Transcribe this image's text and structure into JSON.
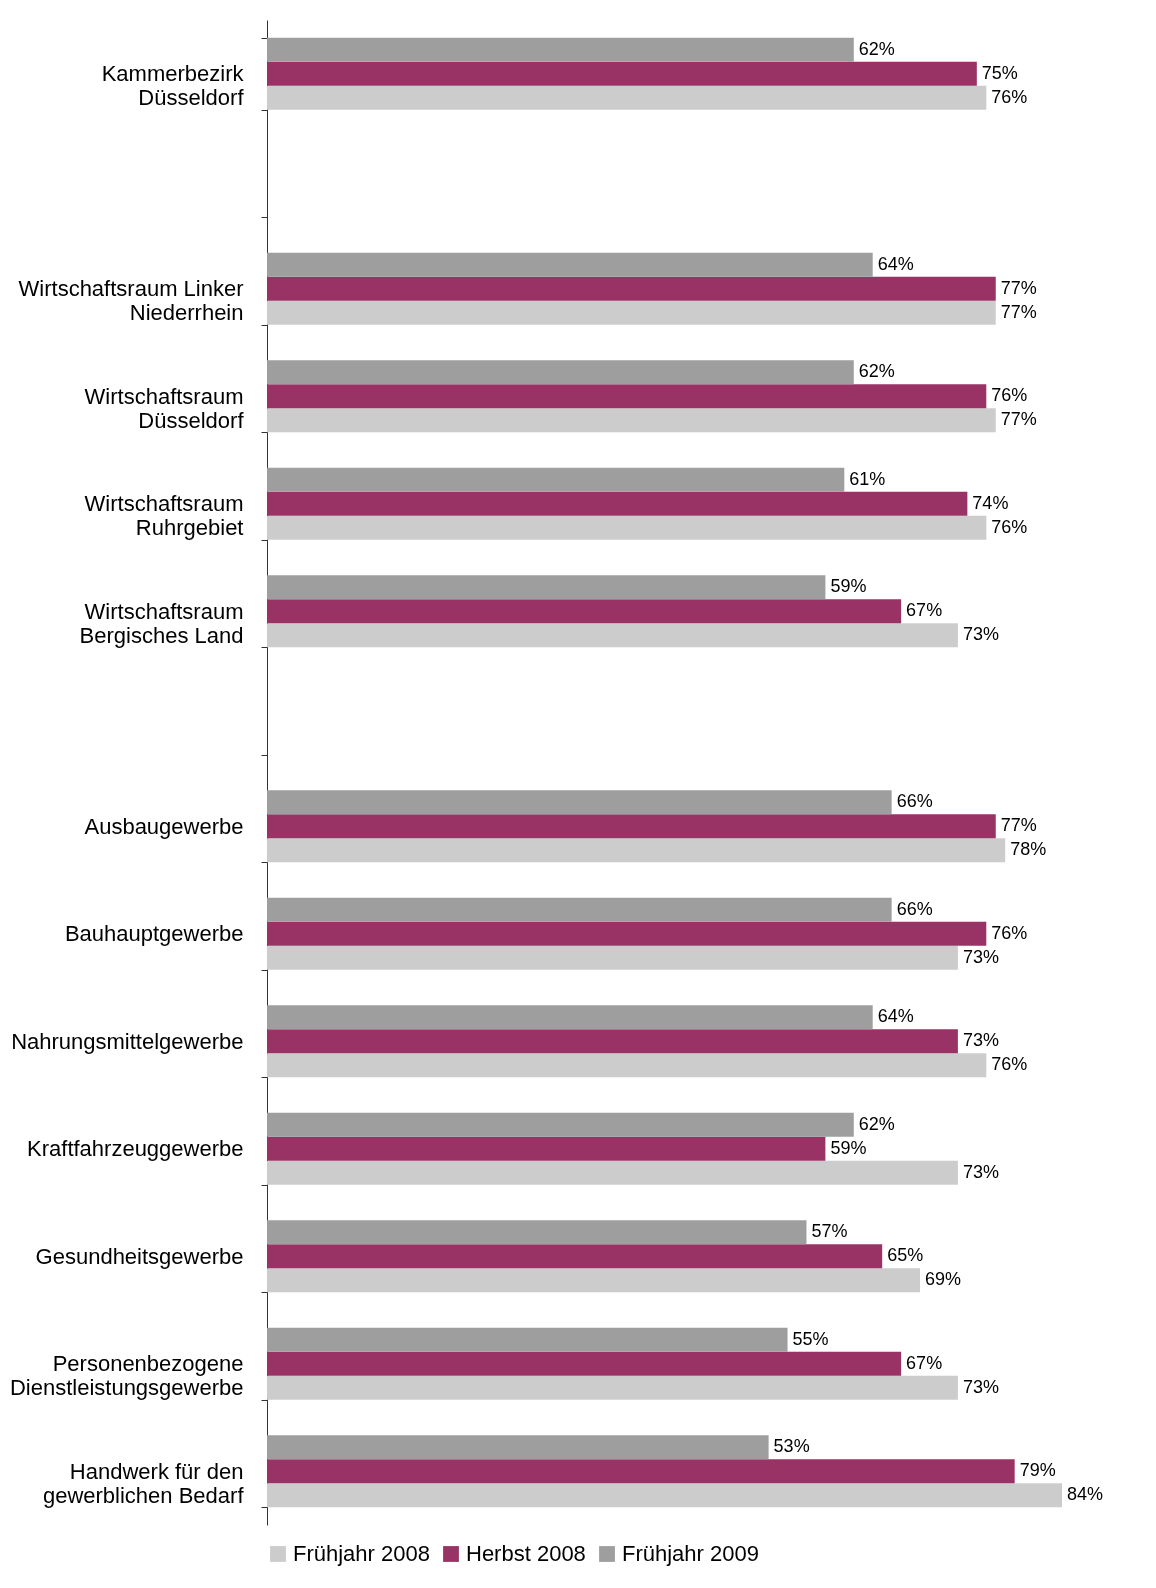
{
  "chart_data": {
    "type": "bar",
    "orientation": "horizontal",
    "categories": [
      "Kammerbezirk Düsseldorf",
      null,
      "Wirtschaftsraum Linker Niederrhein",
      "Wirtschaftsraum Düsseldorf",
      "Wirtschaftsraum Ruhrgebiet",
      "Wirtschaftsraum Bergisches Land",
      null,
      "Ausbaugewerbe",
      "Bauhauptgewerbe",
      "Nahrungsmittelgewerbe",
      "Kraftfahrzeuggewerbe",
      "Gesundheitsgewerbe",
      "Personenbezogene Dienstleistungsgewerbe",
      "Handwerk für den gewerblichen Bedarf"
    ],
    "series": [
      {
        "name": "Frühjahr 2008",
        "color": "#cccccc",
        "values": [
          76,
          null,
          77,
          77,
          76,
          73,
          null,
          78,
          73,
          76,
          73,
          69,
          73,
          84
        ],
        "value_labels": [
          "76%",
          null,
          "77%",
          "77%",
          "76%",
          "73%",
          null,
          "78%",
          "73%",
          "76%",
          "73%",
          "69%",
          "73%",
          "84%"
        ]
      },
      {
        "name": "Herbst 2008",
        "color": "#993366",
        "values": [
          75,
          null,
          77,
          76,
          74,
          67,
          null,
          77,
          76,
          73,
          59,
          65,
          67,
          79
        ],
        "value_labels": [
          "75%",
          null,
          "77%",
          "76%",
          "74%",
          "67%",
          null,
          "77%",
          "76%",
          "73%",
          "59%",
          "65%",
          "67%",
          "79%"
        ]
      },
      {
        "name": "Frühjahr 2009",
        "color": "#9e9e9e",
        "values": [
          62,
          null,
          64,
          62,
          61,
          59,
          null,
          66,
          66,
          64,
          62,
          57,
          55,
          53
        ],
        "value_labels": [
          "62%",
          null,
          "64%",
          "62%",
          "61%",
          "59%",
          null,
          "66%",
          "66%",
          "64%",
          "62%",
          "57%",
          "55%",
          "53%"
        ]
      }
    ],
    "tick_labels": "y",
    "legend": "bottom"
  }
}
